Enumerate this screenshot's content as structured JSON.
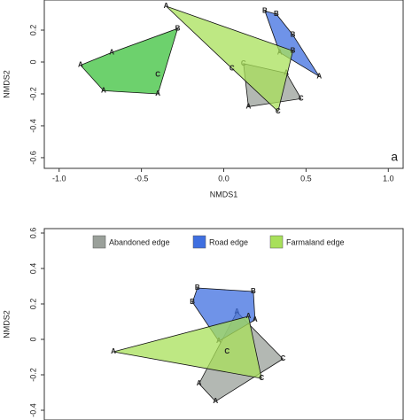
{
  "chart_data": [
    {
      "type": "scatter",
      "xlabel": "NMDS1",
      "ylabel": "NMDS2",
      "annotation": "a",
      "xlim": [
        -1.09,
        1.09
      ],
      "ylim": [
        -0.667,
        0.389
      ],
      "xticks": [
        {
          "value": -1,
          "label": "-1.0"
        },
        -0.5,
        {
          "value": 0,
          "label": "0.0"
        },
        0.5,
        {
          "value": 1,
          "label": "1.0"
        }
      ],
      "yticks": [
        -0.6,
        -0.4,
        -0.2,
        0,
        0.2
      ],
      "series": [
        {
          "color": "#3cc23c",
          "x": [
            -0.28,
            -0.68,
            -0.87,
            -0.73,
            -0.4,
            -0.4
          ],
          "y": [
            0.21,
            0.06,
            -0.02,
            -0.18,
            -0.2,
            -0.08
          ],
          "labels": [
            "B",
            "A",
            "A",
            "A",
            "A",
            "C"
          ]
        },
        {
          "color": "#9aa09a",
          "x": [
            0.12,
            0.38,
            0.47,
            0.15
          ],
          "y": [
            -0.01,
            -0.07,
            -0.23,
            -0.28
          ],
          "labels": [
            "C",
            "A",
            "C",
            "A"
          ]
        },
        {
          "color": "#3f6fe0",
          "x": [
            0.25,
            0.32,
            0.42,
            0.58,
            0.34
          ],
          "y": [
            0.32,
            0.3,
            0.17,
            -0.09,
            0.06
          ],
          "labels": [
            "B",
            "B",
            "B",
            "A",
            "A"
          ]
        },
        {
          "color": "#a8e05a",
          "x": [
            -0.35,
            0.42,
            0.33,
            0.05
          ],
          "y": [
            0.35,
            0.07,
            -0.31,
            -0.04
          ],
          "labels": [
            "A",
            "B",
            "C",
            "C"
          ]
        }
      ]
    },
    {
      "type": "scatter",
      "ylabel": "NMDS2",
      "xlim": [
        -1.09,
        1.09
      ],
      "ylim": [
        -0.455,
        0.625
      ],
      "yticks": [
        -0.4,
        -0.2,
        0,
        0.2,
        0.4,
        0.6
      ],
      "series": [
        {
          "name": "Abandoned edge",
          "color": "#9aa09a",
          "x": [
            0.08,
            0.36,
            -0.05,
            -0.15
          ],
          "y": [
            0.155,
            -0.11,
            -0.35,
            -0.25
          ],
          "labels": [
            "A",
            "C",
            "A",
            "A"
          ]
        },
        {
          "name": "Road edge",
          "color": "#3f6fe0",
          "x": [
            -0.16,
            0.18,
            0.19,
            -0.03,
            -0.19
          ],
          "y": [
            0.29,
            0.27,
            0.11,
            -0.01,
            0.21
          ],
          "labels": [
            "B",
            "B",
            "A",
            "A",
            "B"
          ]
        },
        {
          "name": "Farmaland edge",
          "color": "#a8e05a",
          "x": [
            -0.67,
            0.15,
            0.23,
            0.02
          ],
          "y": [
            -0.07,
            0.13,
            -0.22,
            -0.07
          ],
          "labels": [
            "A",
            "A",
            "C",
            "C"
          ]
        }
      ]
    }
  ]
}
